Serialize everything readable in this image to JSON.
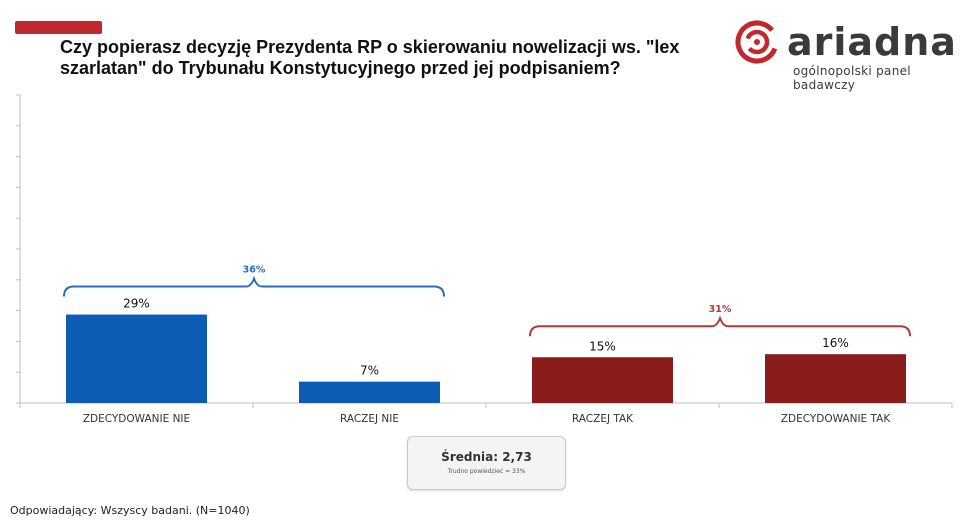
{
  "header": {
    "title": "Czy popierasz decyzję Prezydenta RP o skierowaniu nowelizacji ws. \"lex szarlatan\" do Trybunału Konstytucyjnego przed jej podpisaniem?"
  },
  "logo": {
    "wordmark": "ariadna",
    "tagline": "ogólnopolski panel badawczy"
  },
  "colors": {
    "accent": "#c0282d",
    "no": "#0e5bb5",
    "yes": "#8a1c1c",
    "bracket_no": "#2a6cc4",
    "bracket_yes": "#b03a3a"
  },
  "chart_data": {
    "type": "bar",
    "categories": [
      "ZDECYDOWANIE NIE",
      "RACZEJ NIE",
      "RACZEJ TAK",
      "ZDECYDOWANIE TAK"
    ],
    "values": [
      29,
      7,
      15,
      16
    ],
    "value_labels": [
      "29%",
      "7%",
      "15%",
      "16%"
    ],
    "bar_colors": [
      "#0e5bb5",
      "#0e5bb5",
      "#8a1c1c",
      "#8a1c1c"
    ],
    "ylim": [
      0,
      100
    ],
    "groups": [
      {
        "label": "36%",
        "from": 0,
        "to": 1,
        "color": "#2a6cc4"
      },
      {
        "label": "31%",
        "from": 2,
        "to": 3,
        "color": "#b03a3a"
      }
    ],
    "grid": false
  },
  "summary": {
    "mean": "Średnia: 2,73",
    "dont_know": "Trudno powiedzieć = 33%"
  },
  "footer": {
    "respondents": "Odpowiadający: Wszyscy badani. (N=1040)"
  }
}
